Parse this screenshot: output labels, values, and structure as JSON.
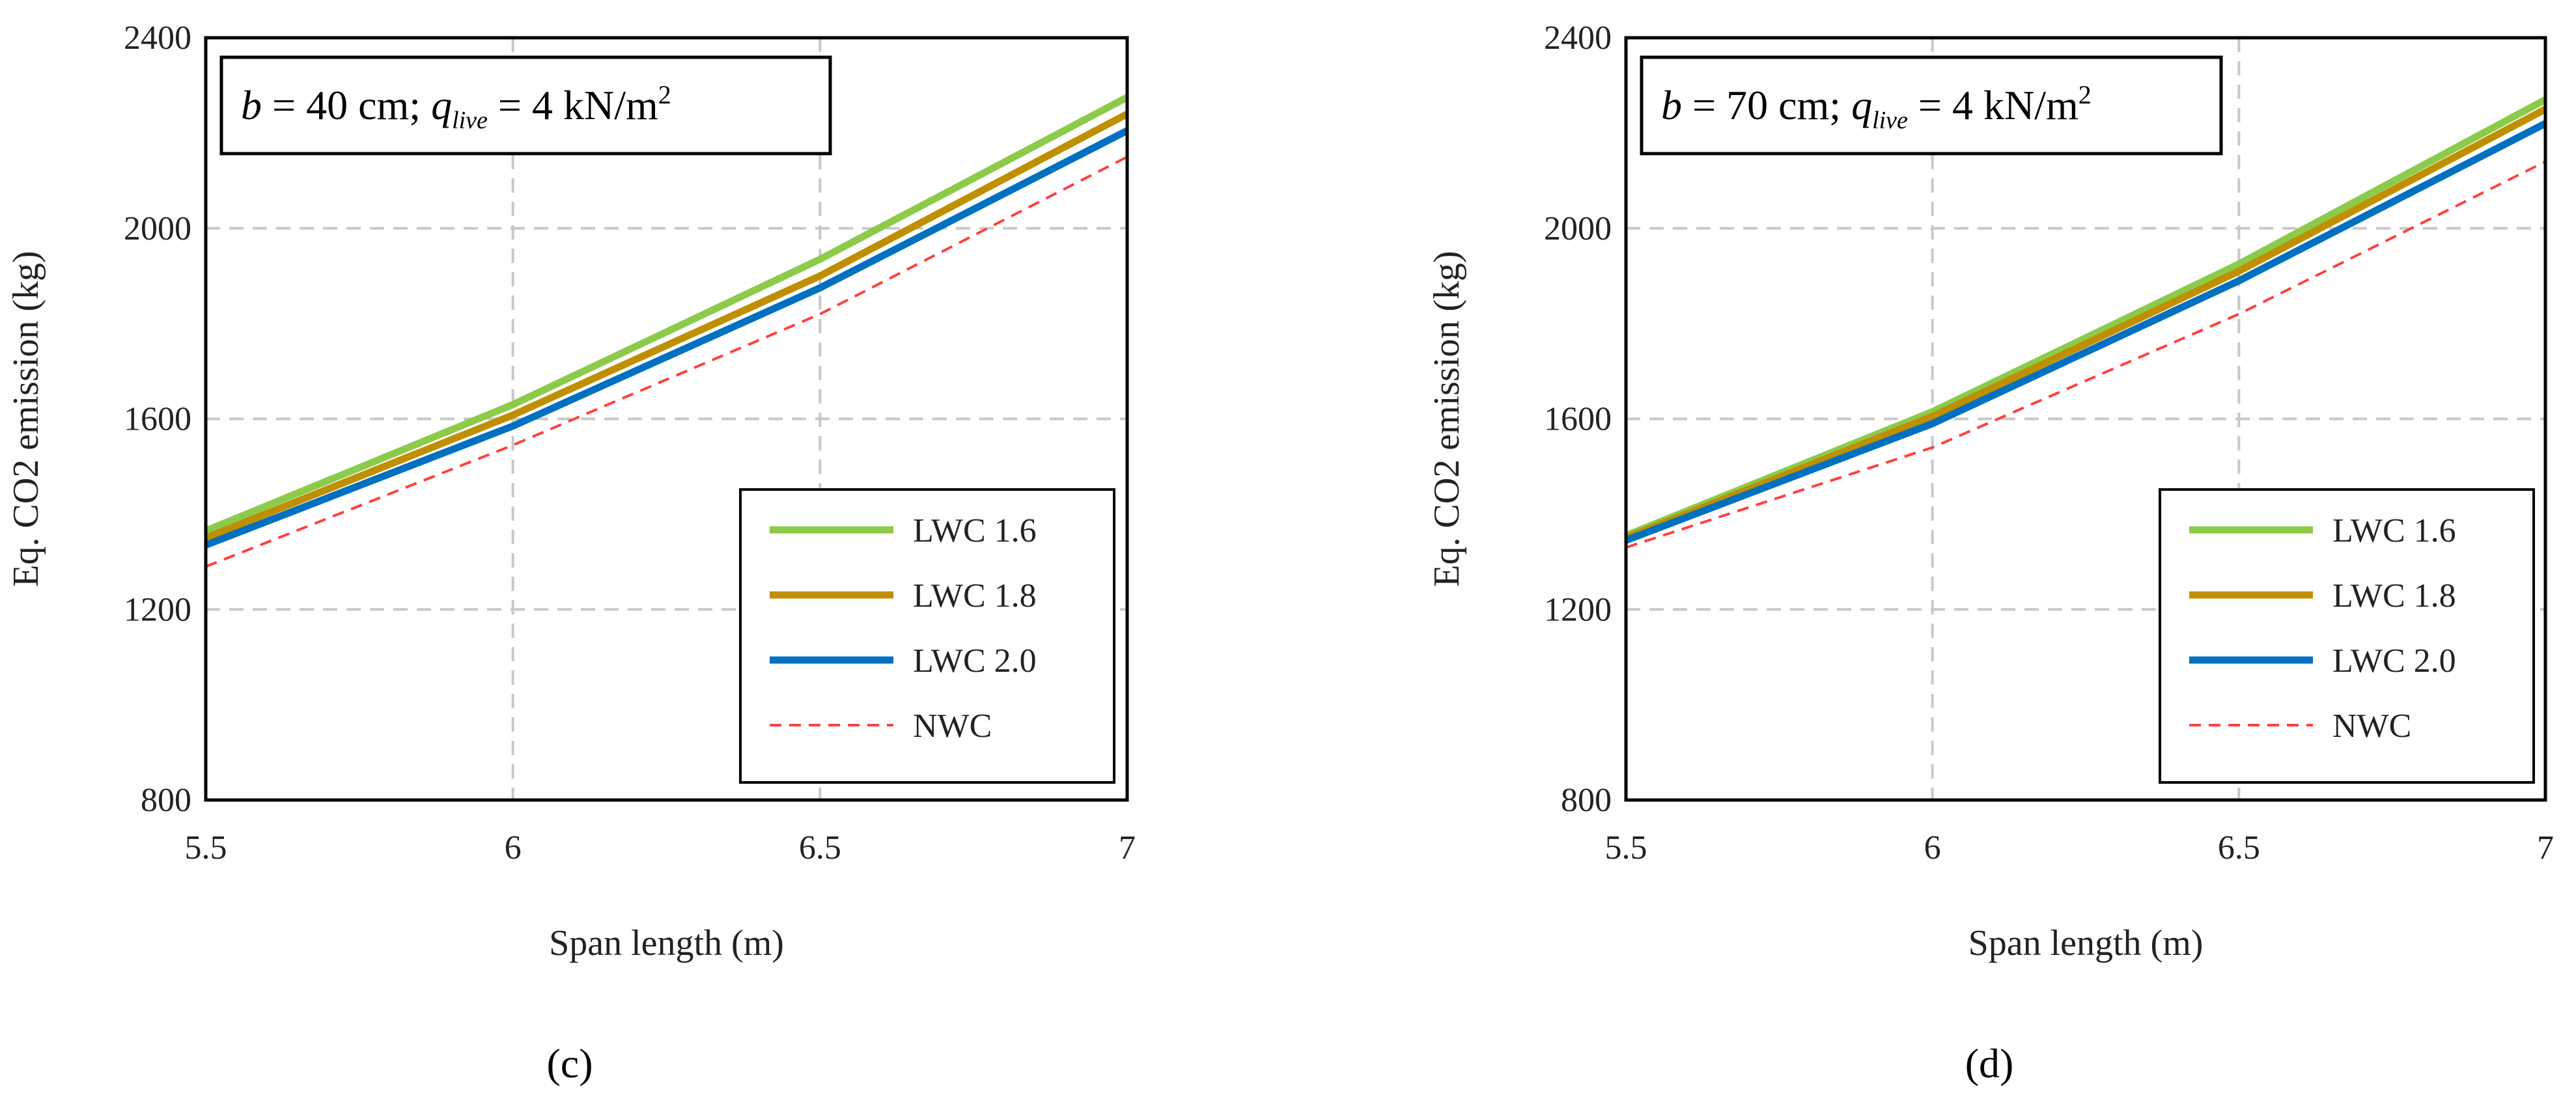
{
  "chart_data": [
    {
      "type": "line",
      "panel_label": "(c)",
      "annotation": {
        "prefix_italic": "b",
        "mid": " = 40 cm; ",
        "q_italic": "q",
        "q_sub": "live",
        "suffix": " = 4 kN/m",
        "sup": "2"
      },
      "xlabel": "Span length (m)",
      "ylabel": "Eq. CO2 emission (kg)",
      "x": [
        5.5,
        6,
        6.5,
        7
      ],
      "x_ticks": [
        "5.5",
        "6",
        "6.5",
        "7"
      ],
      "y_ticks": [
        "800",
        "1200",
        "1600",
        "2000",
        "2400"
      ],
      "xlim": [
        5.5,
        7
      ],
      "ylim": [
        800,
        2400
      ],
      "grid": true,
      "legend_position": "bottom-right",
      "series": [
        {
          "name": "LWC 1.6",
          "values": [
            1365,
            1630,
            1935,
            2275
          ],
          "color": "#8CCB4A",
          "style": "solid"
        },
        {
          "name": "LWC 1.8",
          "values": [
            1350,
            1608,
            1900,
            2240
          ],
          "color": "#BF8F00",
          "style": "solid"
        },
        {
          "name": "LWC 2.0",
          "values": [
            1335,
            1585,
            1875,
            2205
          ],
          "color": "#0070C0",
          "style": "solid"
        },
        {
          "name": "NWC",
          "values": [
            1290,
            1545,
            1820,
            2150
          ],
          "color": "#FF4040",
          "style": "dashed"
        }
      ]
    },
    {
      "type": "line",
      "panel_label": "(d)",
      "annotation": {
        "prefix_italic": "b",
        "mid": " = 70 cm; ",
        "q_italic": "q",
        "q_sub": "live",
        "suffix": " = 4 kN/m",
        "sup": "2"
      },
      "xlabel": "Span length (m)",
      "ylabel": "Eq. CO2 emission (kg)",
      "x": [
        5.5,
        6,
        6.5,
        7
      ],
      "x_ticks": [
        "5.5",
        "6",
        "6.5",
        "7"
      ],
      "y_ticks": [
        "800",
        "1200",
        "1600",
        "2000",
        "2400"
      ],
      "xlim": [
        5.5,
        7
      ],
      "ylim": [
        800,
        2400
      ],
      "grid": true,
      "legend_position": "bottom-right",
      "series": [
        {
          "name": "LWC 1.6",
          "values": [
            1355,
            1615,
            1925,
            2270
          ],
          "color": "#8CCB4A",
          "style": "solid"
        },
        {
          "name": "LWC 1.8",
          "values": [
            1350,
            1605,
            1910,
            2250
          ],
          "color": "#BF8F00",
          "style": "solid"
        },
        {
          "name": "LWC 2.0",
          "values": [
            1345,
            1590,
            1890,
            2220
          ],
          "color": "#0070C0",
          "style": "solid"
        },
        {
          "name": "NWC",
          "values": [
            1330,
            1540,
            1820,
            2140
          ],
          "color": "#FF4040",
          "style": "dashed"
        }
      ]
    }
  ]
}
